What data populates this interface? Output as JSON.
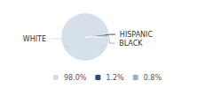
{
  "chart_data": {
    "type": "pie",
    "categories": [
      "WHITE",
      "HISPANIC",
      "BLACK"
    ],
    "values": [
      98.0,
      1.2,
      0.8
    ],
    "value_labels": [
      "98.0%",
      "1.2%",
      "0.8%"
    ],
    "colors": [
      "#d6e0ea",
      "#2e4d6b",
      "#9ab0c4"
    ],
    "legend": "bottom"
  }
}
